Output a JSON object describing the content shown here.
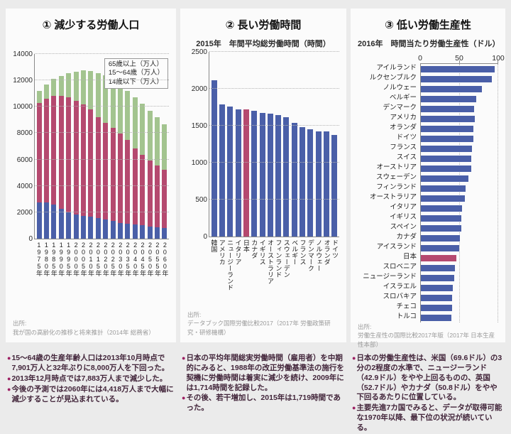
{
  "colors": {
    "blue": "#4a5fa8",
    "red": "#b5496f",
    "green": "#a3c48f",
    "bullet": "#9d2063",
    "axis": "#8a8a8a",
    "page_bg": "#ebebeb",
    "card_bg": "#fbfbfb"
  },
  "panels": [
    {
      "title": "① 減少する労働人口",
      "source_label": "出所:",
      "source": "我が国の高齢化の推移と将来推計（2014年 総務省）",
      "bullets": [
        "15～64歳の生産年齢人口は2013年10月時点で7,901万人と32年ぶりに8,000万人を下回った。",
        "2013年12月時点では7,883万人まで減少した。",
        "今後の予測では2060年には4,418万人まで大幅に減少することが見込まれている。"
      ]
    },
    {
      "title": "② 長い労働時間",
      "subtitle": "2015年　年間平均総労働時間（時間）",
      "source_label": "出所:",
      "source": "データブック国際労働比較2017（2017年 労働政策研究・研修機構）",
      "bullets": [
        "日本の平均年間総実労働時間（雇用者）を中期的にみると、1988年の改正労働基準法の施行を契機に労働時間は着実に減少を続け、2009年には1,714時間を記録した。",
        "その後、若干増加し、2015年は1,719時間であった。"
      ]
    },
    {
      "title": "③ 低い労働生産性",
      "subtitle": "2016年　時間当たり労働生産性（ドル）",
      "source_label": "出所:",
      "source": "労働生産性の国際比較2017年版（2017年 日本生産性本部）",
      "bullets": [
        "日本の労働生産性は、米国（69.6ドル）の3分の2程度の水準で、ニュージーランド（42.9ドル）をやや上回るものの、英国（52.7ドル）やカナダ（50.8ドル）をやや下回るあたりに位置している。",
        "主要先進7カ国でみると、データが取得可能な1970年以降、最下位の状況が続いている。"
      ]
    }
  ],
  "chart_data": [
    {
      "type": "bar",
      "stacked": true,
      "title": "① 減少する労働人口",
      "categories": [
        "1975年",
        "1980年",
        "1985年",
        "1990年",
        "1995年",
        "2000年",
        "2005年",
        "2010年",
        "2015年",
        "2020年",
        "2025年",
        "2030年",
        "2035年",
        "2040年",
        "2045年",
        "2050年",
        "2055年",
        "2060年"
      ],
      "series": [
        {
          "name": "14歳以下（万人）",
          "color_key": "blue",
          "values": [
            2722,
            2751,
            2603,
            2249,
            2001,
            1847,
            1752,
            1680,
            1589,
            1457,
            1324,
            1204,
            1129,
            1073,
            1021,
            939,
            861,
            791
          ]
        },
        {
          "name": "15～64歳（万人）",
          "color_key": "red",
          "values": [
            7581,
            7883,
            8251,
            8590,
            8716,
            8622,
            8442,
            8103,
            7629,
            7341,
            7085,
            6773,
            6343,
            5787,
            5353,
            5001,
            4706,
            4418
          ]
        },
        {
          "name": "65歳以上（万人）",
          "color_key": "green",
          "values": [
            887,
            1065,
            1247,
            1489,
            1826,
            2204,
            2576,
            2948,
            3347,
            3612,
            3657,
            3685,
            3741,
            3868,
            3856,
            3768,
            3626,
            3464
          ]
        }
      ],
      "legend": [
        "65歳以上（万人）",
        "15～64歳（万人）",
        "14歳以下（万人）"
      ],
      "legend_position": "top-right",
      "grid": "dotted-horizontal",
      "ylim": [
        0,
        14000
      ],
      "ytick_step": 2000
    },
    {
      "type": "bar",
      "title": "② 長い労働時間",
      "subtitle": "2015年　年間平均総労働時間（時間）",
      "categories": [
        "韓国",
        "アメリカ",
        "ニュージーランド",
        "イタリア",
        "日本",
        "カナダ",
        "イギリス",
        "オーストラリア",
        "フィンランド",
        "スウェーデン",
        "ベルギー",
        "フランス",
        "デンマーク",
        "ノルウェー",
        "オランダ",
        "ドイツ"
      ],
      "values": [
        2113,
        1790,
        1757,
        1725,
        1719,
        1706,
        1674,
        1665,
        1646,
        1612,
        1541,
        1482,
        1457,
        1424,
        1419,
        1371
      ],
      "highlight": "日本",
      "highlight_color_key": "red",
      "bar_color_key": "blue",
      "grid": "dotted-horizontal",
      "ylim": [
        0,
        2500
      ],
      "ytick_step": 500
    },
    {
      "type": "bar",
      "orientation": "horizontal",
      "title": "③ 低い労働生産性",
      "subtitle": "2016年　時間当たり労働生産性（ドル）",
      "categories": [
        "アイルランド",
        "ルクセンブルク",
        "ノルウェー",
        "ベルギー",
        "デンマーク",
        "アメリカ",
        "オランダ",
        "ドイツ",
        "フランス",
        "スイス",
        "オーストリア",
        "スウェーデン",
        "フィンランド",
        "オーストラリア",
        "イタリア",
        "イギリス",
        "スペイン",
        "カナダ",
        "アイスランド",
        "日本",
        "スロベニア",
        "ニュージーランド",
        "イスラエル",
        "スロバキア",
        "チェコ",
        "トルコ"
      ],
      "values": [
        95.8,
        91.8,
        78.7,
        71.8,
        69.0,
        69.6,
        68.2,
        68.0,
        65.6,
        65.1,
        64.8,
        61.8,
        57.4,
        56.9,
        53.5,
        52.7,
        52.0,
        50.8,
        49.6,
        46.0,
        43.8,
        42.9,
        40.9,
        40.4,
        40.1,
        39.8
      ],
      "highlight": "日本",
      "highlight_color_key": "red",
      "bar_color_key": "blue",
      "grid": "dotted-vertical",
      "xlim": [
        0,
        100
      ],
      "xticks": [
        0,
        50,
        100
      ]
    }
  ]
}
